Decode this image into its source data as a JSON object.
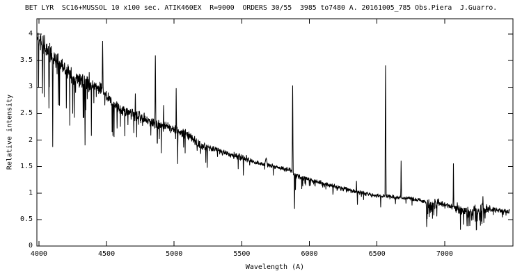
{
  "window": {
    "background": "#ffffff",
    "foreground": "#000000"
  },
  "chart_data": {
    "type": "line",
    "title": "BET LYR  SC16+MUSSOL 10 x100 sec. ATIK460EX  R=9000  ORDERS 30/55  3985 to7480 A. 20161005_785 Obs.Piera  J.Guarro.",
    "xlabel": "Wavelength (A)",
    "ylabel": "Relative intensity",
    "xlim": [
      3985,
      7505
    ],
    "ylim": [
      0,
      4.29
    ],
    "wavelength_range": [
      3985,
      7480
    ],
    "grid": false,
    "legend_position": "none",
    "line_color": "#000000",
    "frame_color": "#000000",
    "xticks": {
      "values": [
        4000,
        4500,
        5000,
        5500,
        6000,
        6500,
        7000
      ],
      "labels": [
        "4000",
        "4500",
        "5000",
        "5500",
        "6000",
        "6500",
        "7000"
      ]
    },
    "yticks": {
      "values": [
        0,
        0.5,
        1,
        1.5,
        2,
        2.5,
        3,
        3.5,
        4
      ],
      "labels": [
        "0",
        "0.5",
        "1",
        "1.5",
        "2",
        "2.5",
        "3",
        "3.5",
        "4"
      ]
    },
    "continuum_points": [
      [
        3985,
        3.92
      ],
      [
        4020,
        3.8
      ],
      [
        4060,
        3.72
      ],
      [
        4100,
        3.6
      ],
      [
        4150,
        3.42
      ],
      [
        4200,
        3.32
      ],
      [
        4250,
        3.22
      ],
      [
        4300,
        3.15
      ],
      [
        4360,
        3.08
      ],
      [
        4430,
        3.0
      ],
      [
        4470,
        2.95
      ],
      [
        4520,
        2.78
      ],
      [
        4600,
        2.58
      ],
      [
        4700,
        2.5
      ],
      [
        4800,
        2.35
      ],
      [
        4900,
        2.28
      ],
      [
        5000,
        2.2
      ],
      [
        5100,
        2.1
      ],
      [
        5200,
        1.88
      ],
      [
        5300,
        1.82
      ],
      [
        5400,
        1.74
      ],
      [
        5500,
        1.67
      ],
      [
        5600,
        1.58
      ],
      [
        5700,
        1.52
      ],
      [
        5800,
        1.46
      ],
      [
        5872,
        1.42
      ],
      [
        5900,
        1.32
      ],
      [
        6000,
        1.26
      ],
      [
        6100,
        1.18
      ],
      [
        6200,
        1.11
      ],
      [
        6300,
        1.05
      ],
      [
        6400,
        1.0
      ],
      [
        6500,
        0.95
      ],
      [
        6563,
        0.94
      ],
      [
        6650,
        0.92
      ],
      [
        6750,
        0.9
      ],
      [
        6855,
        0.84
      ],
      [
        6875,
        0.78
      ],
      [
        6960,
        0.79
      ],
      [
        7000,
        0.78
      ],
      [
        7080,
        0.72
      ],
      [
        7150,
        0.68
      ],
      [
        7200,
        0.66
      ],
      [
        7310,
        0.7
      ],
      [
        7400,
        0.68
      ],
      [
        7480,
        0.64
      ]
    ],
    "emission_lines": [
      {
        "wavelength": 4471,
        "peak": 3.87,
        "width": 3.5
      },
      {
        "wavelength": 4713,
        "peak": 2.88,
        "width": 2.5
      },
      {
        "wavelength": 4861,
        "peak": 3.6,
        "width": 3.5
      },
      {
        "wavelength": 4922,
        "peak": 2.66,
        "width": 2.5
      },
      {
        "wavelength": 5015,
        "peak": 2.98,
        "width": 2.5
      },
      {
        "wavelength": 5680,
        "peak": 1.66,
        "width": 10
      },
      {
        "wavelength": 5876,
        "peak": 3.03,
        "width": 3.5
      },
      {
        "wavelength": 6348,
        "peak": 1.23,
        "width": 2
      },
      {
        "wavelength": 6563,
        "peak": 3.41,
        "width": 4
      },
      {
        "wavelength": 6678,
        "peak": 1.61,
        "width": 2.5
      },
      {
        "wavelength": 7065,
        "peak": 1.56,
        "width": 2.5
      },
      {
        "wavelength": 7283,
        "peak": 0.94,
        "width": 2.5
      }
    ],
    "absorption_lines": [
      {
        "wavelength": 4026,
        "depth_to": 2.88,
        "width": 2.5
      },
      {
        "wavelength": 4074,
        "depth_to": 2.6,
        "width": 2
      },
      {
        "wavelength": 4102,
        "depth_to": 1.87,
        "width": 2.5
      },
      {
        "wavelength": 4144,
        "depth_to": 2.66,
        "width": 2
      },
      {
        "wavelength": 4203,
        "depth_to": 2.6,
        "width": 2
      },
      {
        "wavelength": 4250,
        "depth_to": 2.5,
        "width": 2
      },
      {
        "wavelength": 4341,
        "depth_to": 1.9,
        "width": 2.5
      },
      {
        "wavelength": 4388,
        "depth_to": 2.08,
        "width": 2
      },
      {
        "wavelength": 4547,
        "depth_to": 2.08,
        "width": 2
      },
      {
        "wavelength": 4578,
        "depth_to": 2.22,
        "width": 2
      },
      {
        "wavelength": 4890,
        "depth_to": 2.02,
        "width": 2
      },
      {
        "wavelength": 5026,
        "depth_to": 1.55,
        "width": 2
      },
      {
        "wavelength": 5070,
        "depth_to": 1.86,
        "width": 2
      },
      {
        "wavelength": 5170,
        "depth_to": 1.8,
        "width": 2
      },
      {
        "wavelength": 5196,
        "depth_to": 1.74,
        "width": 2
      },
      {
        "wavelength": 5890,
        "depth_to": 0.7,
        "width": 2.5
      },
      {
        "wavelength": 5897,
        "depth_to": 1.06,
        "width": 2
      },
      {
        "wavelength": 6355,
        "depth_to": 0.78,
        "width": 2
      },
      {
        "wavelength": 6527,
        "depth_to": 0.73,
        "width": 2
      },
      {
        "wavelength": 6867,
        "depth_to": 0.36,
        "width": 2.5
      },
      {
        "wavelength": 6886,
        "depth_to": 0.55,
        "width": 2
      },
      {
        "wavelength": 6920,
        "depth_to": 0.58,
        "width": 2
      },
      {
        "wavelength": 6942,
        "depth_to": 0.56,
        "width": 2
      },
      {
        "wavelength": 7165,
        "depth_to": 0.42,
        "width": 2.5
      },
      {
        "wavelength": 7186,
        "depth_to": 0.38,
        "width": 2.5
      },
      {
        "wavelength": 7234,
        "depth_to": 0.44,
        "width": 2.5
      },
      {
        "wavelength": 7258,
        "depth_to": 0.48,
        "width": 2
      },
      {
        "wavelength": 7299,
        "depth_to": 0.52,
        "width": 2
      }
    ],
    "noise_regions": [
      {
        "from": 3985,
        "to": 4150,
        "sigma": 0.1,
        "dip_prob": 0.09,
        "dip_max": 1.0
      },
      {
        "from": 4150,
        "to": 4400,
        "sigma": 0.085,
        "dip_prob": 0.07,
        "dip_max": 0.85
      },
      {
        "from": 4400,
        "to": 4800,
        "sigma": 0.06,
        "dip_prob": 0.05,
        "dip_max": 0.6
      },
      {
        "from": 4800,
        "to": 5250,
        "sigma": 0.045,
        "dip_prob": 0.04,
        "dip_max": 0.45
      },
      {
        "from": 5250,
        "to": 5600,
        "sigma": 0.03,
        "dip_prob": 0.025,
        "dip_max": 0.28
      },
      {
        "from": 5600,
        "to": 5872,
        "sigma": 0.022,
        "dip_prob": 0.012,
        "dip_max": 0.18
      },
      {
        "from": 5880,
        "to": 6060,
        "sigma": 0.03,
        "dip_prob": 0.06,
        "dip_max": 0.22
      },
      {
        "from": 6060,
        "to": 6320,
        "sigma": 0.022,
        "dip_prob": 0.03,
        "dip_max": 0.18
      },
      {
        "from": 6320,
        "to": 6860,
        "sigma": 0.018,
        "dip_prob": 0.015,
        "dip_max": 0.14
      },
      {
        "from": 6868,
        "to": 6960,
        "sigma": 0.05,
        "dip_prob": 0.18,
        "dip_max": 0.28
      },
      {
        "from": 6960,
        "to": 7080,
        "sigma": 0.025,
        "dip_prob": 0.03,
        "dip_max": 0.12
      },
      {
        "from": 7080,
        "to": 7320,
        "sigma": 0.05,
        "dip_prob": 0.22,
        "dip_max": 0.3
      },
      {
        "from": 7320,
        "to": 7480,
        "sigma": 0.028,
        "dip_prob": 0.06,
        "dip_max": 0.14
      }
    ],
    "noise_seed": 9,
    "sample_step_angstrom": 1.8
  }
}
